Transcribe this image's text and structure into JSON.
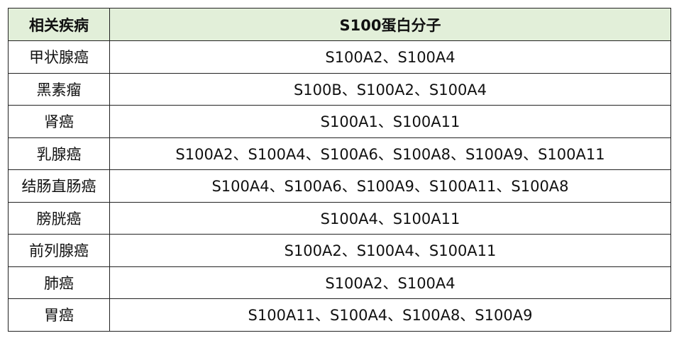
{
  "table": {
    "header": [
      "相关疾病",
      "S100蛋白分子"
    ],
    "rows": [
      [
        "甲状腺癌",
        "S100A2、S100A4"
      ],
      [
        "黑素瘤",
        "S100B、S100A2、S100A4"
      ],
      [
        "肾癌",
        "S100A1、S100A11"
      ],
      [
        "乳腺癌",
        "S100A2、S100A4、S100A6、S100A8、S100A9、S100A11"
      ],
      [
        "结肠直肠癌",
        "S100A4、S100A6、S100A9、S100A11、S100A8"
      ],
      [
        "膀胱癌",
        "S100A4、S100A11"
      ],
      [
        "前列腺癌",
        "S100A2、S100A4、S100A11"
      ],
      [
        "肺癌",
        "S100A2、S100A4"
      ],
      [
        "胃癌",
        "S100A11、S100A4、S100A8、S100A9"
      ]
    ]
  }
}
